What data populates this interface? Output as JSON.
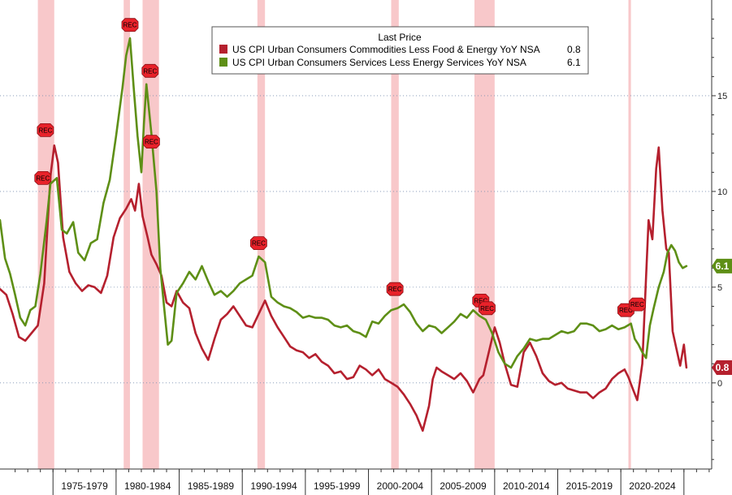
{
  "chart_data": {
    "type": "line",
    "title": "",
    "xlabel": "",
    "ylabel": "",
    "ylim": [
      -4.5,
      20
    ],
    "xlim": [
      1970.0,
      2026.4
    ],
    "y_ticks": [
      {
        "value": 15,
        "label": "15"
      },
      {
        "value": 10,
        "label": "10"
      },
      {
        "value": 5,
        "label": "5"
      },
      {
        "value": 0,
        "label": "0"
      }
    ],
    "x_periods": [
      {
        "label": "1975-1979",
        "start": 1974.2,
        "end": 1979.2
      },
      {
        "label": "1980-1984",
        "start": 1979.2,
        "end": 1984.2
      },
      {
        "label": "1985-1989",
        "start": 1984.2,
        "end": 1989.2
      },
      {
        "label": "1990-1994",
        "start": 1989.2,
        "end": 1994.2
      },
      {
        "label": "1995-1999",
        "start": 1994.2,
        "end": 1999.2
      },
      {
        "label": "2000-2004",
        "start": 1999.2,
        "end": 2004.2
      },
      {
        "label": "2005-2009",
        "start": 2004.2,
        "end": 2009.2
      },
      {
        "label": "2010-2014",
        "start": 2009.2,
        "end": 2014.2
      },
      {
        "label": "2015-2019",
        "start": 2014.2,
        "end": 2019.2
      },
      {
        "label": "2020-2024",
        "start": 2019.2,
        "end": 2024.2
      }
    ],
    "recessions": [
      {
        "start": 1973.0,
        "end": 1974.3,
        "markers": [
          {
            "x": 1973.6,
            "y": 13.2
          },
          {
            "x": 1973.4,
            "y": 10.7
          }
        ]
      },
      {
        "start": 1979.8,
        "end": 1980.3,
        "markers": [
          {
            "x": 1980.3,
            "y": 18.7
          }
        ]
      },
      {
        "start": 1981.3,
        "end": 1982.6,
        "markers": [
          {
            "x": 1981.9,
            "y": 16.3
          },
          {
            "x": 1982.0,
            "y": 12.6
          }
        ]
      },
      {
        "start": 1990.4,
        "end": 1991.0,
        "markers": [
          {
            "x": 1990.5,
            "y": 7.3
          }
        ]
      },
      {
        "start": 2001.0,
        "end": 2001.6,
        "markers": [
          {
            "x": 2001.3,
            "y": 4.9
          }
        ]
      },
      {
        "start": 2007.6,
        "end": 2009.2,
        "markers": [
          {
            "x": 2008.1,
            "y": 4.3
          },
          {
            "x": 2008.6,
            "y": 3.9
          }
        ]
      },
      {
        "start": 2019.8,
        "end": 2020.0,
        "markers": [
          {
            "x": 2019.6,
            "y": 3.8
          },
          {
            "x": 2020.5,
            "y": 4.1
          }
        ]
      }
    ],
    "rec_label": "REC",
    "legend": {
      "title": "Last Price",
      "placement": "top-center"
    },
    "series": [
      {
        "name": "US CPI Urban Consumers Commodities Less Food & Energy YoY NSA",
        "last_value": "0.8",
        "color": "#b5202e",
        "points": [
          [
            1970.0,
            4.9
          ],
          [
            1970.5,
            4.6
          ],
          [
            1971.0,
            3.6
          ],
          [
            1971.5,
            2.4
          ],
          [
            1972.0,
            2.2
          ],
          [
            1972.5,
            2.6
          ],
          [
            1973.0,
            3.0
          ],
          [
            1973.5,
            5.2
          ],
          [
            1974.0,
            10.8
          ],
          [
            1974.3,
            12.4
          ],
          [
            1974.6,
            11.5
          ],
          [
            1975.0,
            7.6
          ],
          [
            1975.5,
            5.8
          ],
          [
            1976.0,
            5.2
          ],
          [
            1976.5,
            4.8
          ],
          [
            1977.0,
            5.1
          ],
          [
            1977.5,
            5.0
          ],
          [
            1978.0,
            4.7
          ],
          [
            1978.5,
            5.6
          ],
          [
            1979.0,
            7.6
          ],
          [
            1979.5,
            8.6
          ],
          [
            1980.0,
            9.1
          ],
          [
            1980.4,
            9.6
          ],
          [
            1980.7,
            9.0
          ],
          [
            1981.0,
            10.4
          ],
          [
            1981.3,
            8.7
          ],
          [
            1981.7,
            7.6
          ],
          [
            1982.0,
            6.7
          ],
          [
            1982.4,
            6.2
          ],
          [
            1982.8,
            5.6
          ],
          [
            1983.2,
            4.2
          ],
          [
            1983.6,
            4.0
          ],
          [
            1984.0,
            4.8
          ],
          [
            1984.5,
            4.2
          ],
          [
            1985.0,
            3.9
          ],
          [
            1985.5,
            2.6
          ],
          [
            1986.0,
            1.8
          ],
          [
            1986.5,
            1.2
          ],
          [
            1987.0,
            2.3
          ],
          [
            1987.5,
            3.3
          ],
          [
            1988.0,
            3.6
          ],
          [
            1988.5,
            4.0
          ],
          [
            1989.0,
            3.5
          ],
          [
            1989.5,
            3.0
          ],
          [
            1990.0,
            2.9
          ],
          [
            1990.5,
            3.6
          ],
          [
            1991.0,
            4.3
          ],
          [
            1991.5,
            3.5
          ],
          [
            1992.0,
            2.9
          ],
          [
            1992.5,
            2.4
          ],
          [
            1993.0,
            1.9
          ],
          [
            1993.5,
            1.7
          ],
          [
            1994.0,
            1.6
          ],
          [
            1994.5,
            1.3
          ],
          [
            1995.0,
            1.5
          ],
          [
            1995.5,
            1.1
          ],
          [
            1996.0,
            0.9
          ],
          [
            1996.5,
            0.5
          ],
          [
            1997.0,
            0.6
          ],
          [
            1997.5,
            0.2
          ],
          [
            1998.0,
            0.3
          ],
          [
            1998.5,
            0.9
          ],
          [
            1999.0,
            0.7
          ],
          [
            1999.5,
            0.4
          ],
          [
            2000.0,
            0.7
          ],
          [
            2000.5,
            0.2
          ],
          [
            2001.0,
            0.0
          ],
          [
            2001.5,
            -0.2
          ],
          [
            2002.0,
            -0.6
          ],
          [
            2002.5,
            -1.1
          ],
          [
            2003.0,
            -1.7
          ],
          [
            2003.5,
            -2.5
          ],
          [
            2004.0,
            -1.2
          ],
          [
            2004.3,
            0.2
          ],
          [
            2004.6,
            0.8
          ],
          [
            2005.0,
            0.6
          ],
          [
            2005.5,
            0.4
          ],
          [
            2006.0,
            0.2
          ],
          [
            2006.5,
            0.5
          ],
          [
            2007.0,
            0.1
          ],
          [
            2007.5,
            -0.5
          ],
          [
            2008.0,
            0.2
          ],
          [
            2008.3,
            0.4
          ],
          [
            2008.7,
            1.5
          ],
          [
            2009.2,
            2.9
          ],
          [
            2009.6,
            2.1
          ],
          [
            2010.0,
            1.0
          ],
          [
            2010.5,
            -0.1
          ],
          [
            2011.0,
            -0.2
          ],
          [
            2011.5,
            1.6
          ],
          [
            2012.0,
            2.1
          ],
          [
            2012.5,
            1.4
          ],
          [
            2013.0,
            0.5
          ],
          [
            2013.5,
            0.1
          ],
          [
            2014.0,
            -0.1
          ],
          [
            2014.5,
            0.0
          ],
          [
            2015.0,
            -0.3
          ],
          [
            2015.5,
            -0.4
          ],
          [
            2016.0,
            -0.5
          ],
          [
            2016.5,
            -0.5
          ],
          [
            2017.0,
            -0.8
          ],
          [
            2017.5,
            -0.5
          ],
          [
            2018.0,
            -0.3
          ],
          [
            2018.5,
            0.2
          ],
          [
            2019.0,
            0.5
          ],
          [
            2019.5,
            0.7
          ],
          [
            2019.8,
            0.3
          ],
          [
            2020.2,
            -0.4
          ],
          [
            2020.5,
            -0.9
          ],
          [
            2020.9,
            1.0
          ],
          [
            2021.2,
            5.5
          ],
          [
            2021.4,
            8.5
          ],
          [
            2021.7,
            7.5
          ],
          [
            2022.0,
            11.2
          ],
          [
            2022.2,
            12.3
          ],
          [
            2022.5,
            9.0
          ],
          [
            2022.8,
            7.0
          ],
          [
            2023.0,
            6.8
          ],
          [
            2023.3,
            2.7
          ],
          [
            2023.6,
            1.8
          ],
          [
            2023.9,
            0.9
          ],
          [
            2024.2,
            2.0
          ],
          [
            2024.4,
            0.8
          ]
        ]
      },
      {
        "name": "US CPI Urban Consumers Services Less Energy Services YoY NSA",
        "last_value": "6.1",
        "color": "#5e8f16",
        "points": [
          [
            1970.0,
            8.5
          ],
          [
            1970.4,
            6.5
          ],
          [
            1970.8,
            5.7
          ],
          [
            1971.2,
            4.6
          ],
          [
            1971.6,
            3.4
          ],
          [
            1972.0,
            3.0
          ],
          [
            1972.4,
            3.8
          ],
          [
            1972.8,
            4.0
          ],
          [
            1973.2,
            5.7
          ],
          [
            1973.7,
            8.5
          ],
          [
            1974.0,
            10.4
          ],
          [
            1974.5,
            10.7
          ],
          [
            1974.9,
            8.0
          ],
          [
            1975.3,
            7.8
          ],
          [
            1975.8,
            8.4
          ],
          [
            1976.2,
            6.8
          ],
          [
            1976.7,
            6.4
          ],
          [
            1977.2,
            7.3
          ],
          [
            1977.7,
            7.5
          ],
          [
            1978.2,
            9.4
          ],
          [
            1978.7,
            10.6
          ],
          [
            1979.2,
            12.9
          ],
          [
            1979.7,
            15.4
          ],
          [
            1980.0,
            17.1
          ],
          [
            1980.3,
            18.0
          ],
          [
            1980.6,
            15.4
          ],
          [
            1980.9,
            12.9
          ],
          [
            1981.2,
            11.0
          ],
          [
            1981.4,
            13.5
          ],
          [
            1981.6,
            15.6
          ],
          [
            1982.0,
            13.0
          ],
          [
            1982.4,
            10.0
          ],
          [
            1982.7,
            6.0
          ],
          [
            1983.0,
            4.0
          ],
          [
            1983.3,
            2.0
          ],
          [
            1983.6,
            2.2
          ],
          [
            1984.0,
            4.7
          ],
          [
            1984.5,
            5.2
          ],
          [
            1985.0,
            5.8
          ],
          [
            1985.5,
            5.4
          ],
          [
            1986.0,
            6.1
          ],
          [
            1986.5,
            5.3
          ],
          [
            1987.0,
            4.6
          ],
          [
            1987.5,
            4.8
          ],
          [
            1988.0,
            4.5
          ],
          [
            1988.5,
            4.8
          ],
          [
            1989.0,
            5.2
          ],
          [
            1989.5,
            5.4
          ],
          [
            1990.0,
            5.6
          ],
          [
            1990.5,
            6.6
          ],
          [
            1991.0,
            6.3
          ],
          [
            1991.5,
            4.5
          ],
          [
            1992.0,
            4.2
          ],
          [
            1992.5,
            4.0
          ],
          [
            1993.0,
            3.9
          ],
          [
            1993.5,
            3.7
          ],
          [
            1994.0,
            3.4
          ],
          [
            1994.5,
            3.5
          ],
          [
            1995.0,
            3.4
          ],
          [
            1995.5,
            3.4
          ],
          [
            1996.0,
            3.3
          ],
          [
            1996.5,
            3.0
          ],
          [
            1997.0,
            2.9
          ],
          [
            1997.5,
            3.0
          ],
          [
            1998.0,
            2.7
          ],
          [
            1998.5,
            2.6
          ],
          [
            1999.0,
            2.4
          ],
          [
            1999.5,
            3.2
          ],
          [
            2000.0,
            3.1
          ],
          [
            2000.5,
            3.5
          ],
          [
            2001.0,
            3.8
          ],
          [
            2001.5,
            3.9
          ],
          [
            2002.0,
            4.1
          ],
          [
            2002.5,
            3.7
          ],
          [
            2003.0,
            3.1
          ],
          [
            2003.5,
            2.7
          ],
          [
            2004.0,
            3.0
          ],
          [
            2004.5,
            2.9
          ],
          [
            2005.0,
            2.6
          ],
          [
            2005.5,
            2.9
          ],
          [
            2006.0,
            3.2
          ],
          [
            2006.5,
            3.6
          ],
          [
            2007.0,
            3.4
          ],
          [
            2007.5,
            3.8
          ],
          [
            2008.0,
            3.5
          ],
          [
            2008.5,
            3.3
          ],
          [
            2009.0,
            2.6
          ],
          [
            2009.5,
            1.6
          ],
          [
            2010.0,
            1.0
          ],
          [
            2010.5,
            0.8
          ],
          [
            2011.0,
            1.4
          ],
          [
            2011.5,
            1.8
          ],
          [
            2012.0,
            2.3
          ],
          [
            2012.5,
            2.2
          ],
          [
            2013.0,
            2.3
          ],
          [
            2013.5,
            2.3
          ],
          [
            2014.0,
            2.5
          ],
          [
            2014.5,
            2.7
          ],
          [
            2015.0,
            2.6
          ],
          [
            2015.5,
            2.7
          ],
          [
            2016.0,
            3.1
          ],
          [
            2016.5,
            3.1
          ],
          [
            2017.0,
            3.0
          ],
          [
            2017.5,
            2.7
          ],
          [
            2018.0,
            2.8
          ],
          [
            2018.5,
            3.0
          ],
          [
            2019.0,
            2.8
          ],
          [
            2019.5,
            2.9
          ],
          [
            2020.0,
            3.1
          ],
          [
            2020.3,
            2.3
          ],
          [
            2020.6,
            2.0
          ],
          [
            2020.9,
            1.6
          ],
          [
            2021.2,
            1.3
          ],
          [
            2021.5,
            3.0
          ],
          [
            2021.8,
            3.9
          ],
          [
            2022.2,
            5.0
          ],
          [
            2022.6,
            5.8
          ],
          [
            2022.9,
            6.8
          ],
          [
            2023.2,
            7.2
          ],
          [
            2023.5,
            6.9
          ],
          [
            2023.8,
            6.3
          ],
          [
            2024.1,
            6.0
          ],
          [
            2024.4,
            6.1
          ]
        ]
      }
    ]
  }
}
